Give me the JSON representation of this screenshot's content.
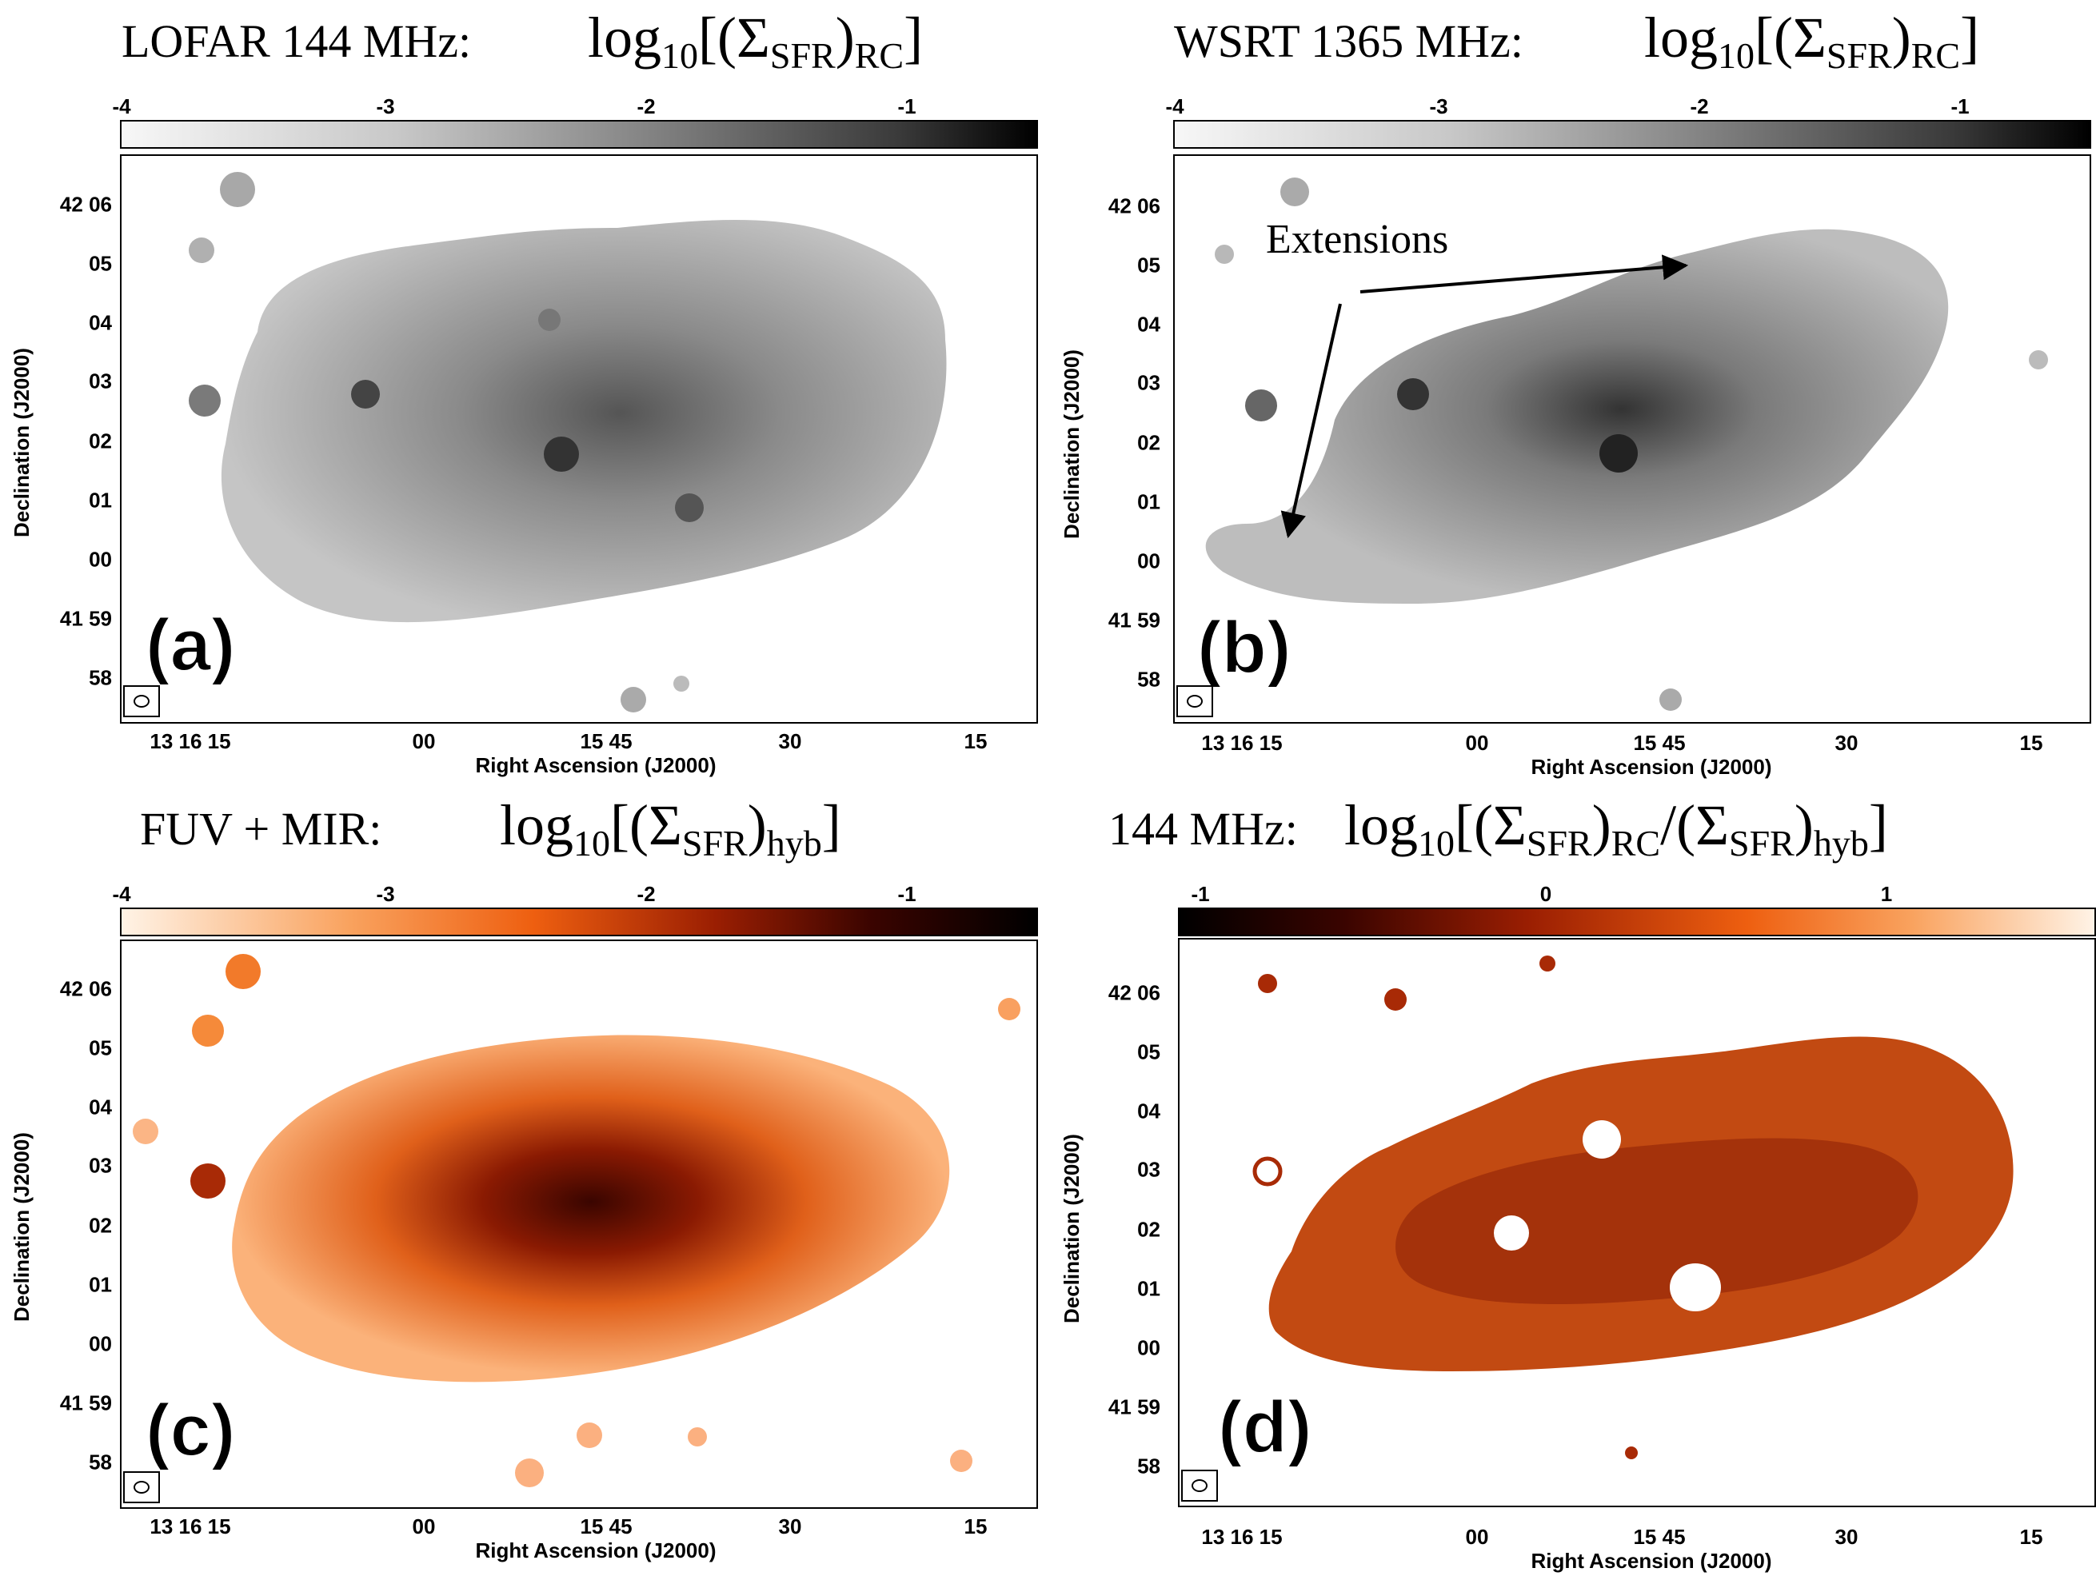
{
  "panels": {
    "a": {
      "label": "(a)",
      "title_prefix": "LOFAR 144 MHz:",
      "title_eq": "log",
      "title_sub1": "10",
      "title_main": "[(Σ",
      "title_sub2": "SFR",
      "title_close": ")",
      "title_sub3": "RC",
      "title_end": "]",
      "colorbar_ticks": [
        "-4",
        "-3",
        "-2",
        "-1"
      ],
      "colormap": "gray"
    },
    "b": {
      "label": "(b)",
      "title_prefix": "WSRT 1365 MHz:",
      "title_eq": "log",
      "title_sub1": "10",
      "title_main": "[(Σ",
      "title_sub2": "SFR",
      "title_close": ")",
      "title_sub3": "RC",
      "title_end": "]",
      "colorbar_ticks": [
        "-4",
        "-3",
        "-2",
        "-1"
      ],
      "annotation": "Extensions",
      "colormap": "gray"
    },
    "c": {
      "label": "(c)",
      "title_prefix": "FUV + MIR:",
      "title_eq": "log",
      "title_sub1": "10",
      "title_main": "[(Σ",
      "title_sub2": "SFR",
      "title_close": ")",
      "title_sub3": "hyb",
      "title_end": "]",
      "colorbar_ticks": [
        "-4",
        "-3",
        "-2",
        "-1"
      ],
      "colormap": "orange"
    },
    "d": {
      "label": "(d)",
      "title_prefix": "144 MHz:",
      "title_eq": "log",
      "title_sub1": "10",
      "title_main": "[(Σ",
      "title_sub2": "SFR",
      "title_close": ")",
      "title_sub3": "RC",
      "title_mid": "/(Σ",
      "title_sub4": "SFR",
      "title_close2": ")",
      "title_sub5": "hyb",
      "title_end": "]",
      "colorbar_ticks": [
        "-1",
        "0",
        "1"
      ],
      "colormap": "orange-reversed"
    }
  },
  "axes": {
    "ylabel": "Declination (J2000)",
    "xlabel": "Right Ascension (J2000)",
    "yticks": [
      "42 06",
      "05",
      "04",
      "03",
      "02",
      "01",
      "00",
      "41 59",
      "58"
    ],
    "xticks": [
      "13 16 15",
      "00",
      "15 45",
      "30",
      "15"
    ]
  },
  "colors": {
    "gray_light": "#f2f2f2",
    "gray_dark": "#000000",
    "orange_light": "#fff0e0",
    "orange_mid": "#f26a1a",
    "orange_dark": "#4a0500"
  }
}
